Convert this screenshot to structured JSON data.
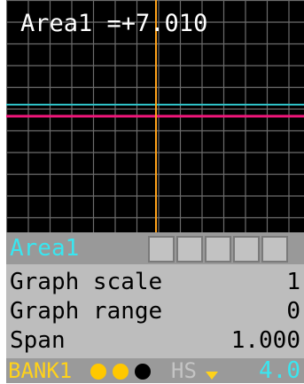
{
  "readout": {
    "text": "Area1 =+7.010"
  },
  "graph": {
    "trace_colors": [
      "#2fc2c8",
      "#f0167a"
    ],
    "cursor_color": "#ffa21a",
    "grid_color": "#6c6c6c"
  },
  "panel": {
    "area_label": "Area1",
    "rows": [
      {
        "label": "Graph scale",
        "value": "1"
      },
      {
        "label": "Graph range",
        "value": "0"
      },
      {
        "label": "Span",
        "value": "1.000"
      }
    ]
  },
  "status": {
    "bank": "BANK1",
    "dot_colors": [
      "#ffc800",
      "#ffc800",
      "#000000"
    ],
    "hs": "HS",
    "value": "4.0"
  }
}
